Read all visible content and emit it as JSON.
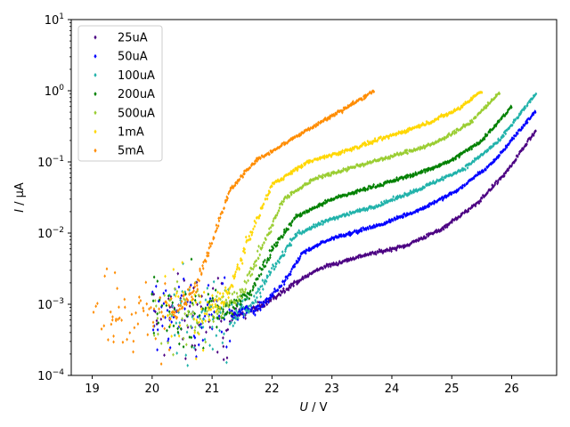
{
  "chart_data": {
    "type": "scatter",
    "title": "",
    "xlabel": {
      "var": "U",
      "unit": " / V"
    },
    "ylabel": {
      "var": "I",
      "unit": " / µA"
    },
    "xlim": [
      18.65,
      26.75
    ],
    "ylim": [
      0.0001,
      10
    ],
    "yscale": "log",
    "grid": false,
    "legend_position": "top-left",
    "x_ticks": [
      19,
      20,
      21,
      22,
      23,
      24,
      25,
      26
    ],
    "y_ticks": [
      {
        "value": 0.0001,
        "base": "10",
        "exp": "−4"
      },
      {
        "value": 0.001,
        "base": "10",
        "exp": "−3"
      },
      {
        "value": 0.01,
        "base": "10",
        "exp": "−2"
      },
      {
        "value": 0.1,
        "base": "10",
        "exp": "−1"
      },
      {
        "value": 1,
        "base": "10",
        "exp": "0"
      },
      {
        "value": 10,
        "base": "10",
        "exp": "1"
      }
    ],
    "noise_floor": 0.0007,
    "series": [
      {
        "name": "25uA",
        "color": "#4b0082",
        "x_start": 20.0,
        "x_end": 26.4,
        "curve": [
          [
            21.0,
            0.0006
          ],
          [
            21.8,
            0.0009
          ],
          [
            22.3,
            0.0018
          ],
          [
            22.8,
            0.0032
          ],
          [
            23.5,
            0.0048
          ],
          [
            24.2,
            0.0065
          ],
          [
            24.8,
            0.011
          ],
          [
            25.4,
            0.025
          ],
          [
            25.9,
            0.07
          ],
          [
            26.4,
            0.27
          ]
        ]
      },
      {
        "name": "50uA",
        "color": "#0000ff",
        "x_start": 20.0,
        "x_end": 26.4,
        "curve": [
          [
            21.0,
            0.0006
          ],
          [
            21.8,
            0.0009
          ],
          [
            22.2,
            0.002
          ],
          [
            22.5,
            0.0052
          ],
          [
            23.0,
            0.0085
          ],
          [
            23.8,
            0.013
          ],
          [
            24.5,
            0.022
          ],
          [
            25.1,
            0.04
          ],
          [
            25.7,
            0.1
          ],
          [
            26.4,
            0.52
          ]
        ]
      },
      {
        "name": "100uA",
        "color": "#20b2aa",
        "x_start": 20.3,
        "x_end": 26.4,
        "curve": [
          [
            21.2,
            0.0006
          ],
          [
            21.7,
            0.0011
          ],
          [
            22.0,
            0.003
          ],
          [
            22.4,
            0.0095
          ],
          [
            23.0,
            0.016
          ],
          [
            23.8,
            0.025
          ],
          [
            24.5,
            0.043
          ],
          [
            25.2,
            0.08
          ],
          [
            25.8,
            0.2
          ],
          [
            26.4,
            0.9
          ]
        ]
      },
      {
        "name": "200uA",
        "color": "#008000",
        "x_start": 20.0,
        "x_end": 26.0,
        "curve": [
          [
            21.1,
            0.0007
          ],
          [
            21.6,
            0.0013
          ],
          [
            22.0,
            0.006
          ],
          [
            22.4,
            0.017
          ],
          [
            23.0,
            0.03
          ],
          [
            23.7,
            0.045
          ],
          [
            24.5,
            0.072
          ],
          [
            25.0,
            0.105
          ],
          [
            25.5,
            0.2
          ],
          [
            26.0,
            0.6
          ]
        ]
      },
      {
        "name": "500uA",
        "color": "#9acd32",
        "x_start": 20.0,
        "x_end": 25.8,
        "curve": [
          [
            21.0,
            0.0007
          ],
          [
            21.5,
            0.0015
          ],
          [
            21.8,
            0.0055
          ],
          [
            22.2,
            0.03
          ],
          [
            22.7,
            0.058
          ],
          [
            23.3,
            0.082
          ],
          [
            24.0,
            0.12
          ],
          [
            24.7,
            0.18
          ],
          [
            25.3,
            0.35
          ],
          [
            25.8,
            0.95
          ]
        ]
      },
      {
        "name": "1mA",
        "color": "#ffd700",
        "x_start": 20.2,
        "x_end": 25.5,
        "curve": [
          [
            20.8,
            0.0006
          ],
          [
            21.3,
            0.0016
          ],
          [
            21.6,
            0.008
          ],
          [
            22.0,
            0.048
          ],
          [
            22.6,
            0.1
          ],
          [
            23.2,
            0.14
          ],
          [
            23.9,
            0.22
          ],
          [
            24.6,
            0.35
          ],
          [
            25.1,
            0.55
          ],
          [
            25.5,
            1.0
          ]
        ]
      },
      {
        "name": "5mA",
        "color": "#ff8c00",
        "x_start": 19.0,
        "x_end": 23.7,
        "curve": [
          [
            20.2,
            0.0006
          ],
          [
            20.7,
            0.0015
          ],
          [
            21.0,
            0.008
          ],
          [
            21.3,
            0.04
          ],
          [
            21.7,
            0.1
          ],
          [
            22.2,
            0.18
          ],
          [
            22.7,
            0.32
          ],
          [
            23.2,
            0.55
          ],
          [
            23.7,
            1.0
          ]
        ]
      }
    ]
  }
}
